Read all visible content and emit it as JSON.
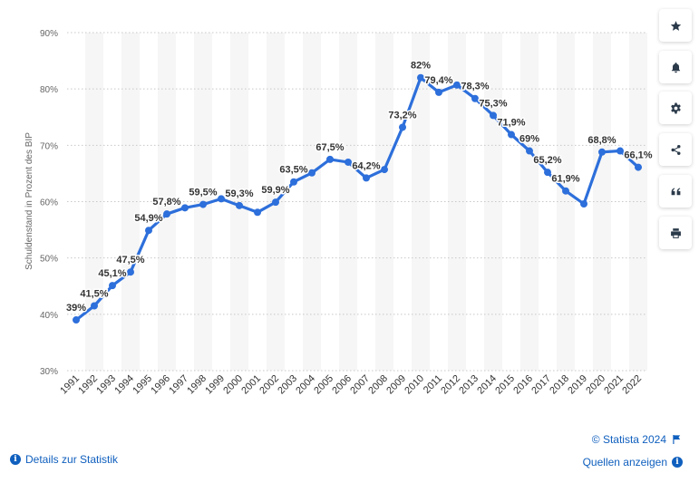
{
  "chart_data": {
    "type": "line",
    "title": "",
    "xlabel": "",
    "ylabel": "Schuldenstand in Prozent des BIP",
    "ylim": [
      30,
      90
    ],
    "yticks": [
      "30%",
      "40%",
      "50%",
      "60%",
      "70%",
      "80%",
      "90%"
    ],
    "grid": true,
    "series_color": "#2d6fdb",
    "categories": [
      "1991",
      "1992",
      "1993",
      "1994",
      "1995",
      "1996",
      "1997",
      "1998",
      "1999",
      "2000",
      "2001",
      "2002",
      "2003",
      "2004",
      "2005",
      "2006",
      "2007",
      "2008",
      "2009",
      "2010",
      "2011",
      "2012",
      "2013",
      "2014",
      "2015",
      "2016",
      "2017",
      "2018",
      "2019",
      "2020",
      "2021",
      "2022"
    ],
    "values": [
      39,
      41.5,
      45.1,
      47.5,
      54.9,
      57.8,
      58.9,
      59.5,
      60.5,
      59.3,
      58.1,
      59.9,
      63.5,
      65.1,
      67.5,
      67.0,
      64.2,
      65.7,
      73.2,
      82,
      79.4,
      80.7,
      78.3,
      75.3,
      71.9,
      69,
      65.2,
      61.9,
      59.6,
      68.8,
      69.0,
      66.1
    ],
    "labels": [
      "39%",
      "41,5%",
      "45,1%",
      "47,5%",
      "54,9%",
      "57,8%",
      "",
      "59,5%",
      "",
      "59,3%",
      "",
      "59,9%",
      "63,5%",
      "",
      "67,5%",
      "",
      "64,2%",
      "",
      "73,2%",
      "82%",
      "79,4%",
      "",
      "78,3%",
      "75,3%",
      "71,9%",
      "69%",
      "65,2%",
      "61,9%",
      "",
      "68,8%",
      "",
      "66,1%"
    ]
  },
  "toolbar": {
    "icons": [
      "star-icon",
      "bell-icon",
      "gear-icon",
      "share-icon",
      "quote-icon",
      "print-icon"
    ]
  },
  "footer": {
    "copyright": "© Statista 2024",
    "details_link": "Details zur Statistik",
    "sources_link": "Quellen anzeigen"
  }
}
